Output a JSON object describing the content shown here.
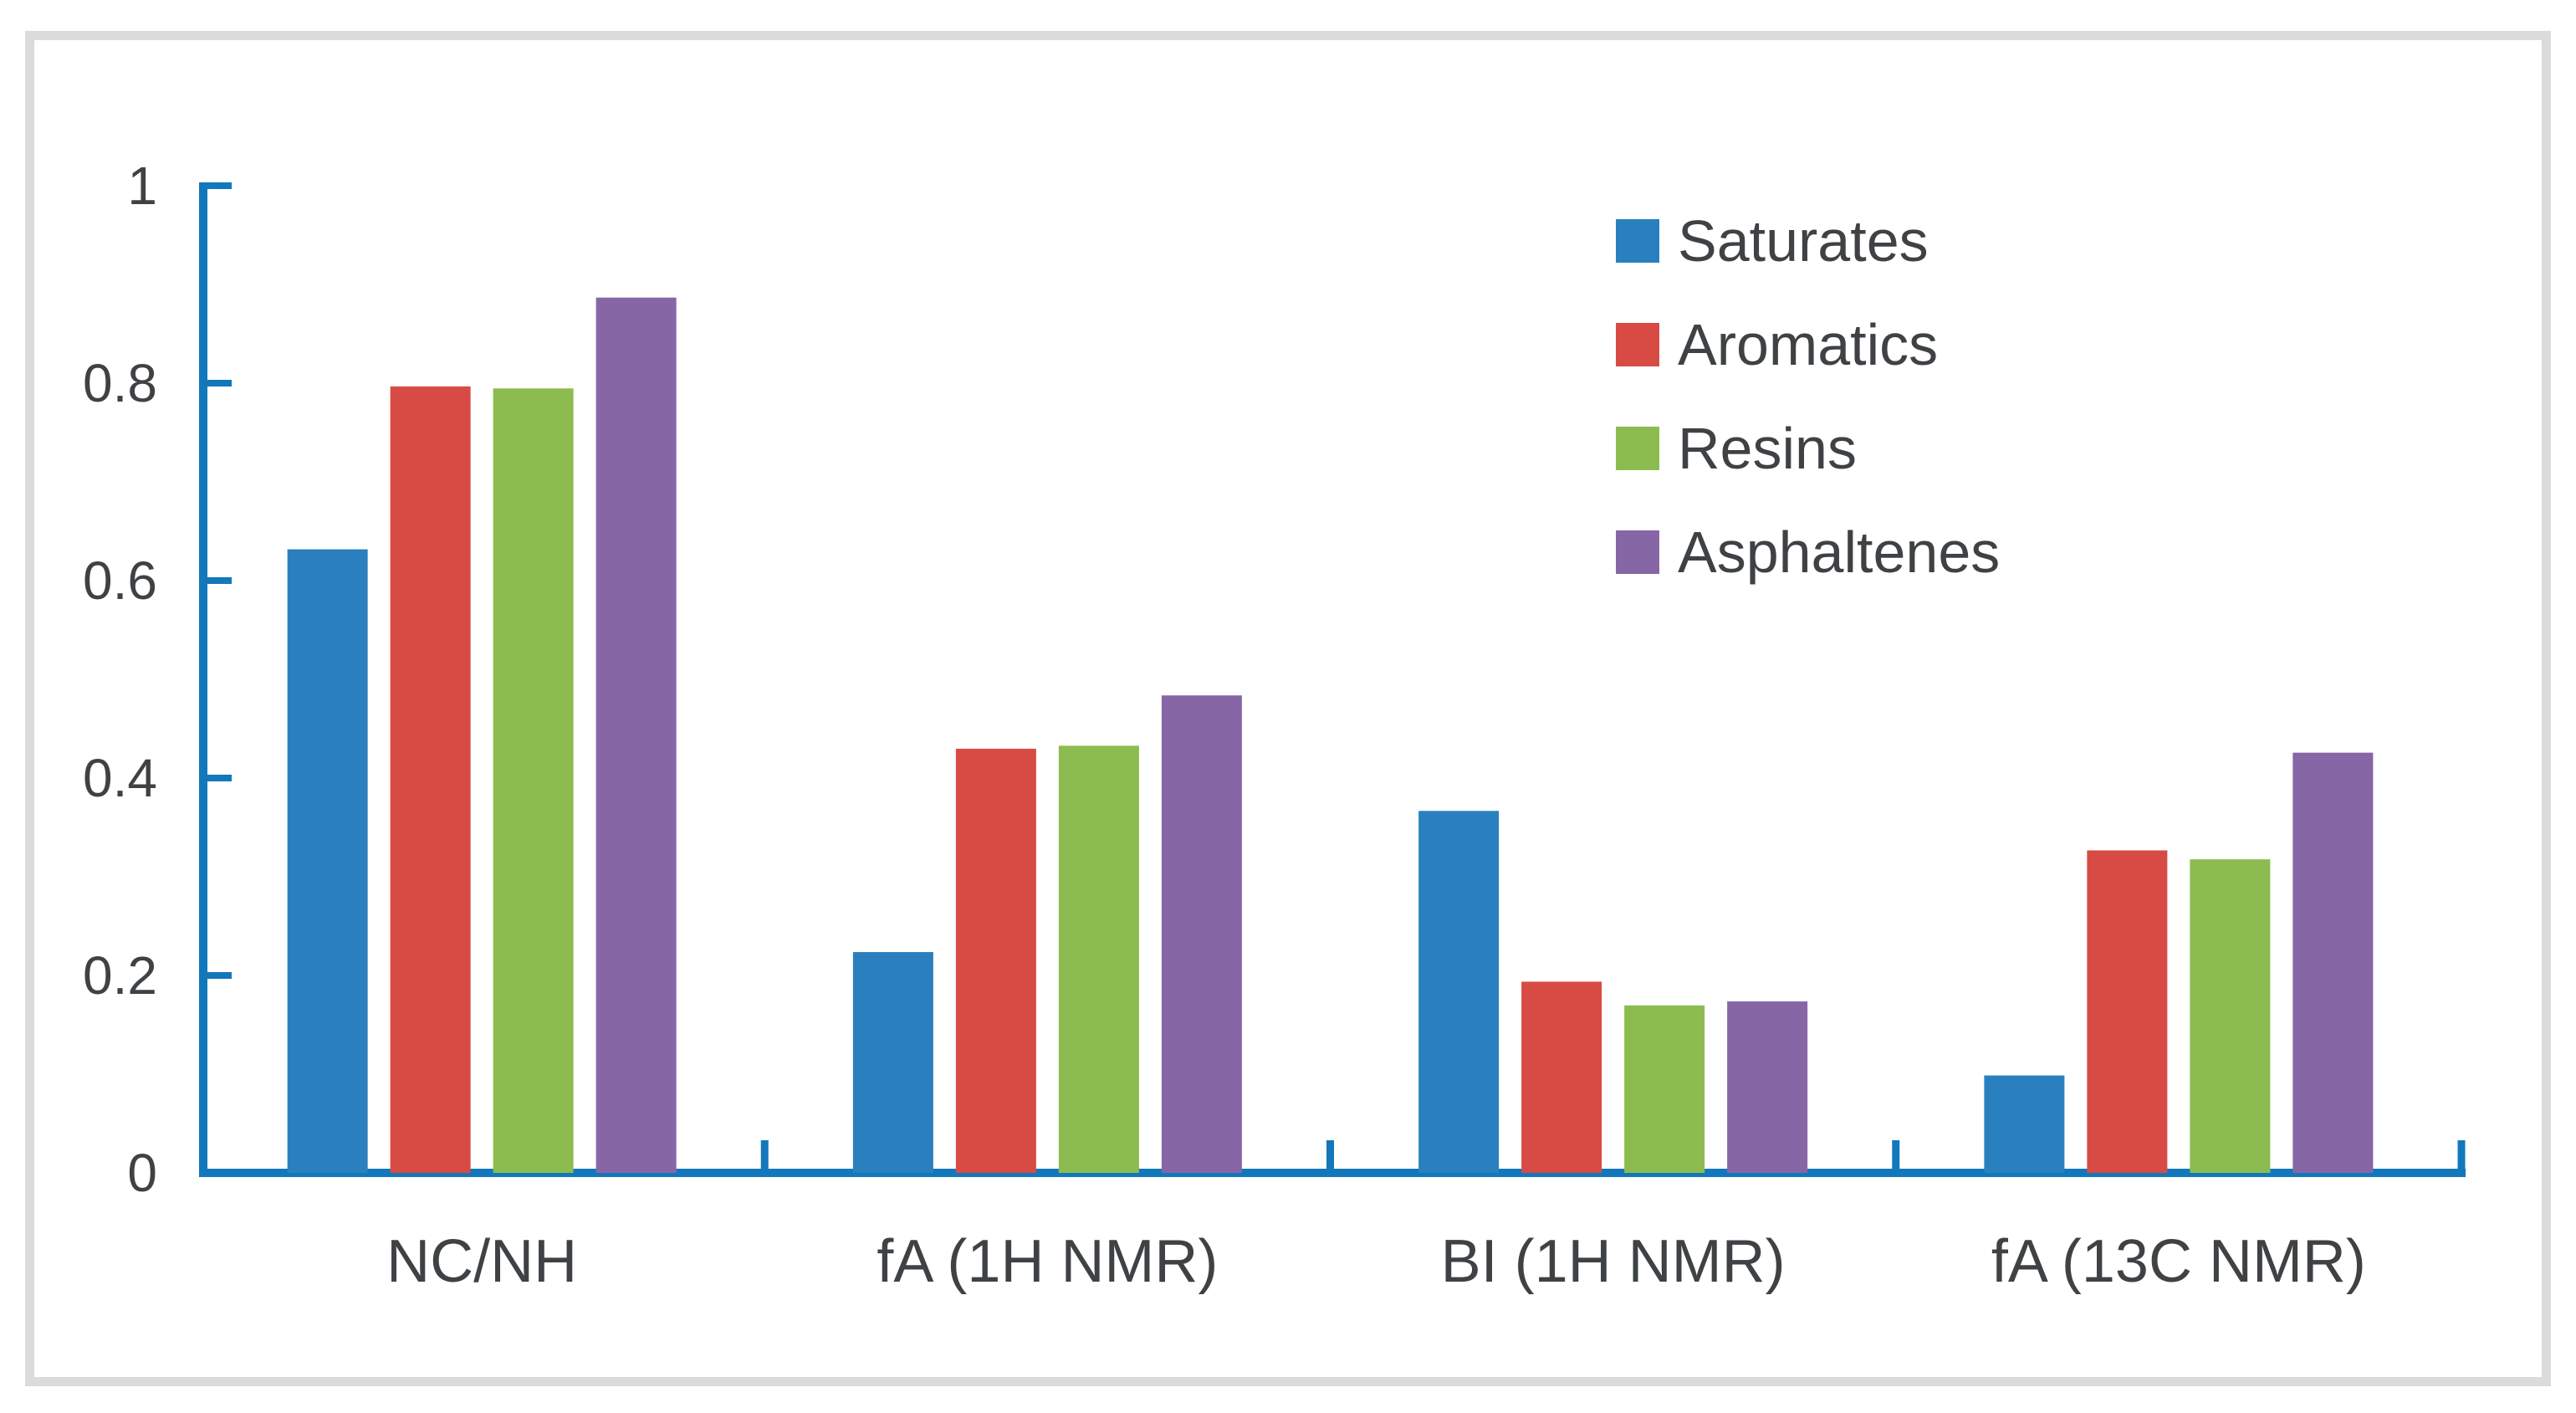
{
  "figure": {
    "title": "",
    "background_color": "#ffffff",
    "frame_color": "#dbdbdb"
  },
  "chart_data": {
    "type": "bar",
    "title": "",
    "xlabel": "",
    "ylabel": "",
    "categories": [
      "NC/NH",
      "fA（1H NMR）",
      "BI（1H NMR）",
      "fA（13C NMR）"
    ],
    "series": [
      {
        "name": "Saturates",
        "color": "#2a80be",
        "values": [
          0.63,
          0.222,
          0.365,
          0.097
        ]
      },
      {
        "name": "Aromatics",
        "color": "#d84b45",
        "values": [
          0.795,
          0.428,
          0.192,
          0.325
        ]
      },
      {
        "name": "Resins",
        "color": "#8cbc50",
        "values": [
          0.793,
          0.431,
          0.168,
          0.316
        ]
      },
      {
        "name": "Asphaltenes",
        "color": "#8766a6",
        "values": [
          0.885,
          0.482,
          0.172,
          0.424
        ]
      }
    ],
    "ylim": [
      0,
      1
    ],
    "yticks": [
      0,
      0.2,
      0.4,
      0.6,
      0.8,
      1
    ],
    "ytick_labels": [
      "0",
      "0.2",
      "0.4",
      "0.6",
      "0.8",
      "1"
    ],
    "grid": false,
    "legend_position": "upper right",
    "axis_color": "#1377bb",
    "text_color": "#3f4245"
  }
}
